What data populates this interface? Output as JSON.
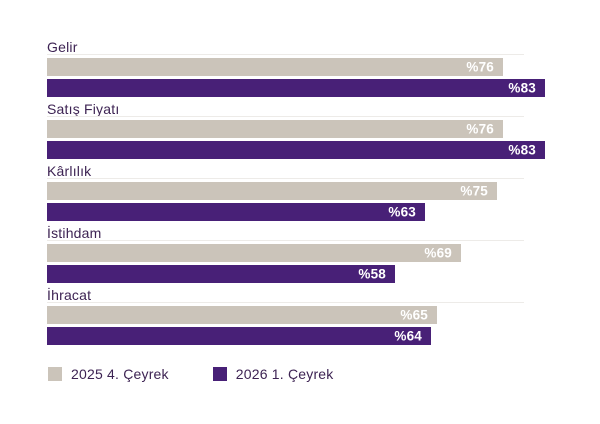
{
  "chart_data": {
    "type": "bar",
    "orientation": "horizontal",
    "title": "",
    "xlabel": "",
    "ylabel": "",
    "xlim": [
      0,
      100
    ],
    "grid": false,
    "legend_position": "bottom-left",
    "value_prefix": "%",
    "categories": [
      "Gelir",
      "Satış Fiyatı",
      "Kârlılık",
      "İstihdam",
      "İhracat"
    ],
    "series": [
      {
        "name": "2025 4. Çeyrek",
        "color": "#cbc4ba",
        "values": [
          76,
          76,
          75,
          69,
          65
        ],
        "value_labels": [
          "%76",
          "%76",
          "%75",
          "%69",
          "%65"
        ]
      },
      {
        "name": "2026 1. Çeyrek",
        "color": "#482077",
        "values": [
          83,
          83,
          63,
          58,
          64
        ],
        "value_labels": [
          "%83",
          "%83",
          "%63",
          "%58",
          "%64"
        ]
      }
    ]
  },
  "colors": {
    "background": "#ffffff",
    "category_label_text": "#3d2353",
    "value_label_text": "#ffffff",
    "separator_line": "#edebe8",
    "series_2025_q4": "#cbc4ba",
    "series_2026_q1": "#482077"
  }
}
